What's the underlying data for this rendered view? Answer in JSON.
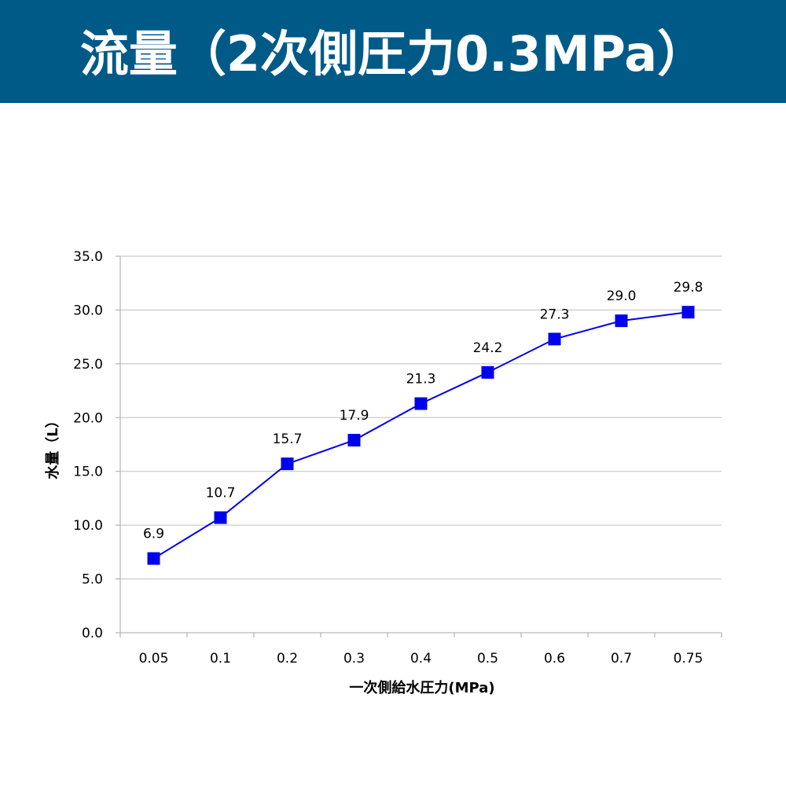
{
  "header": {
    "title": "流量（2次側圧力0.3MPa）"
  },
  "colors": {
    "header_bg": "#005a87",
    "header_text": "#ffffff",
    "series": "#0000ee",
    "gridline": "#bfbfbf"
  },
  "chart_data": {
    "type": "line",
    "title": "",
    "xlabel": "一次側給水圧力(MPa)",
    "ylabel": "水量（L）",
    "categories": [
      "0.05",
      "0.1",
      "0.2",
      "0.3",
      "0.4",
      "0.5",
      "0.6",
      "0.7",
      "0.75"
    ],
    "series": [
      {
        "values": [
          6.9,
          10.7,
          15.7,
          17.9,
          21.3,
          24.2,
          27.3,
          29.0,
          29.8
        ],
        "labels": [
          "6.9",
          "10.7",
          "15.7",
          "17.9",
          "21.3",
          "24.2",
          "27.3",
          "29.0",
          "29.8"
        ],
        "marker": "square"
      }
    ],
    "ylim": [
      0,
      35
    ],
    "yticks": [
      "0.0",
      "5.0",
      "10.0",
      "15.0",
      "20.0",
      "25.0",
      "30.0",
      "35.0"
    ],
    "grid": true,
    "legend": "none"
  }
}
